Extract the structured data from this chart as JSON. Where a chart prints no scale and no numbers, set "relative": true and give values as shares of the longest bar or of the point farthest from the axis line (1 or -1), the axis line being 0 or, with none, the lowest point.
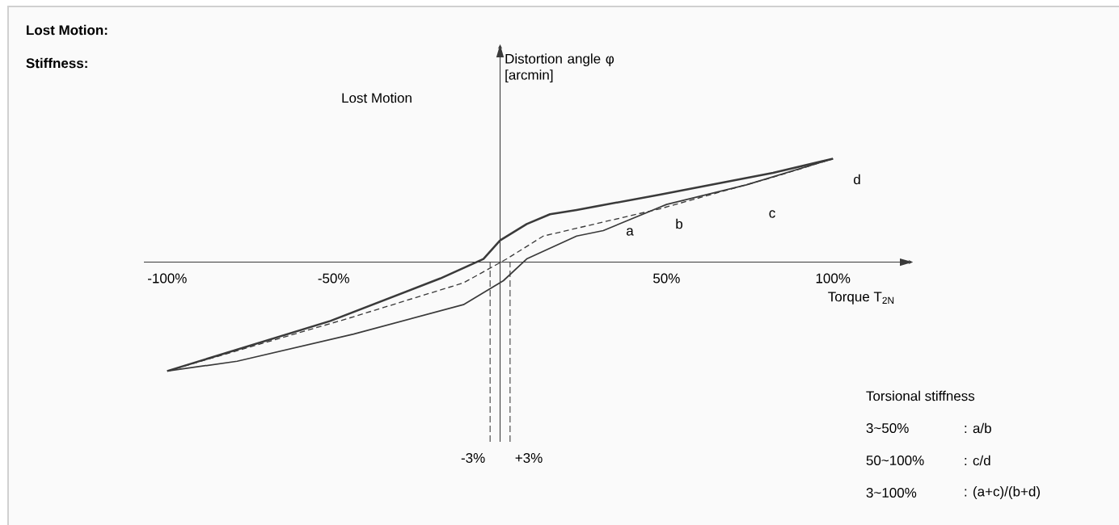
{
  "chart_data": {
    "type": "line",
    "title": "Lost Motion:",
    "subtitle": "Stiffness:",
    "xlabel": "Torque T$_{2N}$",
    "relative": true,
    "marker": "none",
    "xlim": [
      -107,
      124
    ],
    "xticks": [
      {
        "value": -100,
        "label": "-100%"
      },
      {
        "value": -50,
        "label": "-50%"
      },
      {
        "value": 50,
        "label": "50%"
      },
      {
        "value": 100,
        "label": "100%"
      }
    ],
    "series": [
      {
        "color": "#3a3a3a",
        "line_style": "solid",
        "x": [
          -100,
          -51,
          -18,
          -5,
          0,
          8,
          15,
          23,
          48,
          82,
          100
        ],
        "values": [
          -1,
          -0.54,
          -0.15,
          0.03,
          0.2,
          0.35,
          0.44,
          0.48,
          0.62,
          0.82,
          0.95
        ]
      },
      {
        "color": "#3a3a3a",
        "line_style": "solid",
        "x": [
          -100,
          -79,
          -44,
          -11,
          1,
          8,
          23,
          31,
          50,
          74,
          100
        ],
        "values": [
          -1,
          -0.91,
          -0.66,
          -0.39,
          -0.17,
          0.03,
          0.24,
          0.29,
          0.53,
          0.71,
          0.95
        ]
      },
      {
        "color": "#3a3a3a",
        "line_style": "dashed",
        "x": [
          -100,
          -46,
          -11,
          2,
          13,
          48,
          82,
          100
        ],
        "values": [
          -1,
          -0.52,
          -0.19,
          0.03,
          0.24,
          0.49,
          0.78,
          0.95
        ]
      }
    ],
    "ref_lines": [
      {
        "axis": "x",
        "value": -3,
        "label": "-3%",
        "line_style": "dashed"
      },
      {
        "axis": "x",
        "value": 3,
        "label": "+3%",
        "line_style": "dashed"
      }
    ],
    "annotations": [
      "Distortion angle φ [arcmin]",
      "Lost Motion",
      "a",
      "b",
      "c",
      "d",
      "Torsional stiffness",
      "3~50%",
      ": a/b",
      "50~100%",
      ": c/d",
      "3~100%",
      ": (a+c)/(b+d)"
    ]
  }
}
